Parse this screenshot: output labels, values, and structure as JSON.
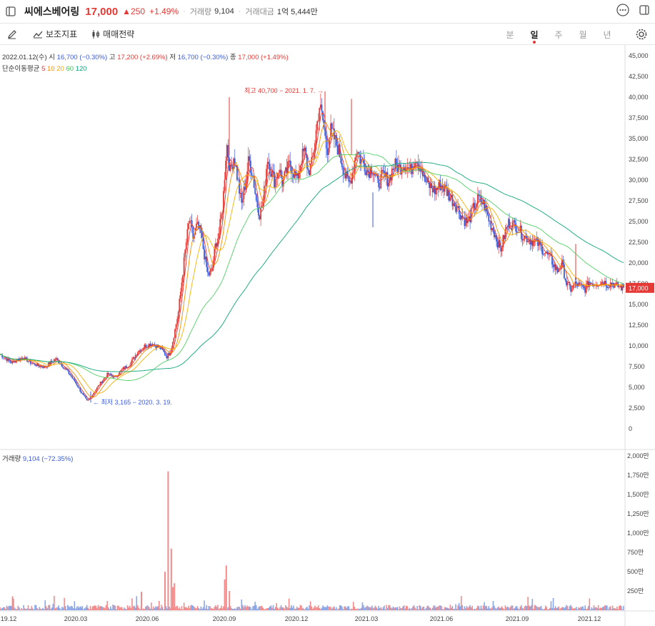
{
  "header": {
    "stock_name": "씨에스베어링",
    "price": "17,000",
    "change": "▲250",
    "change_pct": "+1.49%",
    "volume_label": "거래량",
    "volume_value": "9,104",
    "amount_label": "거래대금",
    "amount_value": "1억 5,444만"
  },
  "toolbar": {
    "indicator_label": "보조지표",
    "trade_label": "매매전략",
    "periods": [
      "분",
      "일",
      "주",
      "월",
      "년"
    ],
    "active_period": "일"
  },
  "info": {
    "date": "2022.01.12(수)",
    "open_label": "시",
    "open": "16,700 (−0.30%)",
    "high_label": "고",
    "high": "17,200 (+2.69%)",
    "low_label": "저",
    "low": "16,700 (−0.30%)",
    "close_label": "종",
    "close": "17,000 (+1.49%)",
    "ma_label": "단순이동평균",
    "ma_periods": [
      "5",
      "10",
      "20",
      "60",
      "120"
    ]
  },
  "volume_info": {
    "label": "거래량",
    "value": "9,104 (−72.35%)"
  },
  "colors": {
    "up": "#e53935",
    "down": "#3b5bdb",
    "ma5": "#e53935",
    "ma10": "#f08c00",
    "ma20": "#fab005",
    "ma60": "#51cf66",
    "ma120": "#0ca678"
  },
  "chart_data": {
    "type": "candlestick",
    "price_axis": {
      "ticks": [
        "45,000",
        "42,500",
        "40,000",
        "37,500",
        "35,000",
        "32,500",
        "30,000",
        "27,500",
        "25,000",
        "22,500",
        "20,000",
        "17,500",
        "15,000",
        "12,500",
        "10,000",
        "7,500",
        "5,000",
        "2,500",
        "0"
      ],
      "range": [
        0,
        45000
      ]
    },
    "volume_axis": {
      "ticks": [
        "2,000만",
        "1,750만",
        "1,500만",
        "1,250만",
        "1,000만",
        "750만",
        "500만",
        "250만"
      ],
      "range": [
        0,
        20000000
      ]
    },
    "x_ticks": [
      "19.12",
      "2020.03",
      "2020.06",
      "2020.09",
      "2020.12",
      "2021.03",
      "2021.06",
      "2021.09",
      "2021.12"
    ],
    "current_price": "17,000",
    "annotations": {
      "high": "최고 40,700 − 2021. 1. 7.",
      "low": "최저 3,165 − 2020. 3. 19."
    },
    "price_path": [
      [
        0,
        9000
      ],
      [
        0.03,
        8000
      ],
      [
        0.06,
        8600
      ],
      [
        0.09,
        7800
      ],
      [
        0.12,
        7400
      ],
      [
        0.15,
        8500
      ],
      [
        0.18,
        7000
      ],
      [
        0.2,
        5800
      ],
      [
        0.22,
        4300
      ],
      [
        0.235,
        3300
      ],
      [
        0.25,
        4200
      ],
      [
        0.27,
        5500
      ],
      [
        0.29,
        6600
      ],
      [
        0.31,
        6200
      ],
      [
        0.33,
        7200
      ],
      [
        0.35,
        7800
      ],
      [
        0.37,
        9300
      ],
      [
        0.39,
        10000
      ],
      [
        0.41,
        10300
      ],
      [
        0.43,
        9800
      ],
      [
        0.45,
        8700
      ],
      [
        0.46,
        9500
      ],
      [
        0.47,
        11700
      ],
      [
        0.48,
        14000
      ],
      [
        0.49,
        18000
      ],
      [
        0.5,
        22000
      ],
      [
        0.51,
        25300
      ],
      [
        0.52,
        23000
      ],
      [
        0.53,
        24500
      ],
      [
        0.54,
        23700
      ],
      [
        0.55,
        21000
      ],
      [
        0.56,
        18500
      ],
      [
        0.57,
        19000
      ],
      [
        0.58,
        22000
      ],
      [
        0.59,
        23700
      ],
      [
        0.6,
        27000
      ],
      [
        0.61,
        34500
      ],
      [
        0.62,
        31000
      ],
      [
        0.63,
        33000
      ],
      [
        0.64,
        30000
      ],
      [
        0.65,
        27000
      ],
      [
        0.66,
        29500
      ],
      [
        0.67,
        32500
      ],
      [
        0.68,
        30800
      ],
      [
        0.69,
        27500
      ],
      [
        0.7,
        25800
      ],
      [
        0.71,
        28000
      ],
      [
        0.72,
        32800
      ],
      [
        0.73,
        31000
      ],
      [
        0.74,
        29800
      ],
      [
        0.75,
        31500
      ],
      [
        0.76,
        29700
      ],
      [
        0.77,
        30800
      ],
      [
        0.78,
        32000
      ],
      [
        0.79,
        31000
      ],
      [
        0.8,
        30000
      ],
      [
        0.81,
        32500
      ],
      [
        0.82,
        33500
      ],
      [
        0.83,
        31000
      ],
      [
        0.84,
        32000
      ],
      [
        0.85,
        35500
      ],
      [
        0.86,
        39000
      ],
      [
        0.87,
        37000
      ],
      [
        0.88,
        33500
      ],
      [
        0.89,
        36000
      ],
      [
        0.9,
        35000
      ],
      [
        0.91,
        33800
      ],
      [
        0.92,
        32200
      ],
      [
        0.93,
        30500
      ],
      [
        0.94,
        29500
      ],
      [
        0.95,
        31200
      ],
      [
        0.96,
        33800
      ],
      [
        0.97,
        32500
      ],
      [
        0.98,
        32000
      ],
      [
        0.99,
        31000
      ],
      [
        1.0,
        31500
      ]
    ],
    "price_path_2": [
      [
        0,
        31500
      ],
      [
        0.04,
        29500
      ],
      [
        0.08,
        30500
      ],
      [
        0.12,
        30000
      ],
      [
        0.16,
        31800
      ],
      [
        0.2,
        31500
      ],
      [
        0.24,
        32000
      ],
      [
        0.28,
        31000
      ],
      [
        0.32,
        33000
      ],
      [
        0.34,
        31800
      ],
      [
        0.36,
        31800
      ],
      [
        0.38,
        30000
      ],
      [
        0.42,
        29300
      ],
      [
        0.46,
        28700
      ],
      [
        0.5,
        29500
      ],
      [
        0.54,
        28800
      ],
      [
        0.58,
        27800
      ],
      [
        0.62,
        26800
      ],
      [
        0.66,
        25500
      ],
      [
        0.7,
        24800
      ],
      [
        0.74,
        26500
      ],
      [
        0.78,
        27800
      ],
      [
        0.82,
        27000
      ],
      [
        0.86,
        25000
      ],
      [
        0.9,
        23500
      ],
      [
        0.94,
        21500
      ],
      [
        0.98,
        24000
      ],
      [
        1.0,
        24800
      ]
    ],
    "price_path_3": [
      [
        0,
        24800
      ],
      [
        0.06,
        24500
      ],
      [
        0.12,
        23300
      ],
      [
        0.18,
        22800
      ],
      [
        0.24,
        22500
      ],
      [
        0.3,
        21500
      ],
      [
        0.36,
        20500
      ],
      [
        0.42,
        19000
      ],
      [
        0.46,
        20000
      ],
      [
        0.5,
        17500
      ],
      [
        0.54,
        16800
      ],
      [
        0.58,
        17500
      ],
      [
        0.62,
        17200
      ],
      [
        0.66,
        16800
      ],
      [
        0.7,
        17700
      ],
      [
        0.74,
        17500
      ],
      [
        0.78,
        17600
      ],
      [
        0.82,
        17800
      ],
      [
        0.86,
        17400
      ],
      [
        0.9,
        17600
      ],
      [
        0.94,
        17200
      ],
      [
        1.0,
        17000
      ]
    ],
    "volume_spikes": [
      [
        0.535,
        18000000
      ],
      [
        0.545,
        8000000
      ],
      [
        0.525,
        5000000
      ],
      [
        0.72,
        5800000
      ],
      [
        0.715,
        4000000
      ],
      [
        0.45,
        2400000
      ],
      [
        0.555,
        3500000
      ],
      [
        0.04,
        1800000
      ],
      [
        0.55,
        3000000
      ],
      [
        0.73,
        2500000
      ]
    ]
  }
}
